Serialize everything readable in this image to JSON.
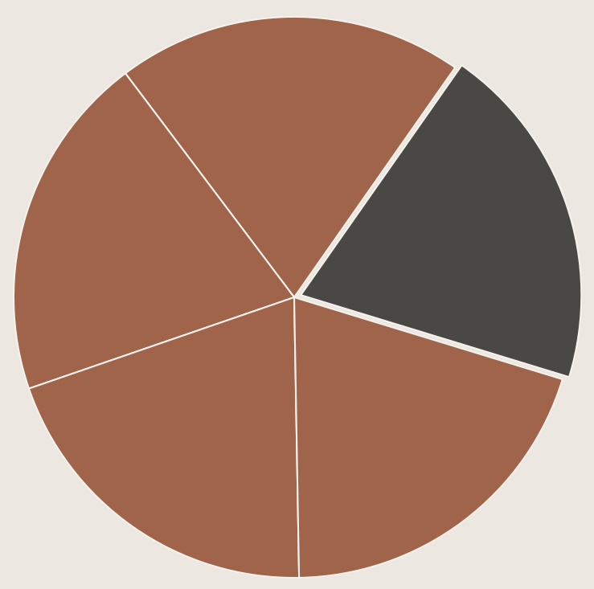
{
  "chart_data": {
    "type": "pie",
    "values": [
      20,
      20,
      20,
      20,
      20
    ],
    "colors": [
      "#4a4845",
      "#a0644a",
      "#a0644a",
      "#a0644a",
      "#a0644a"
    ]
  }
}
